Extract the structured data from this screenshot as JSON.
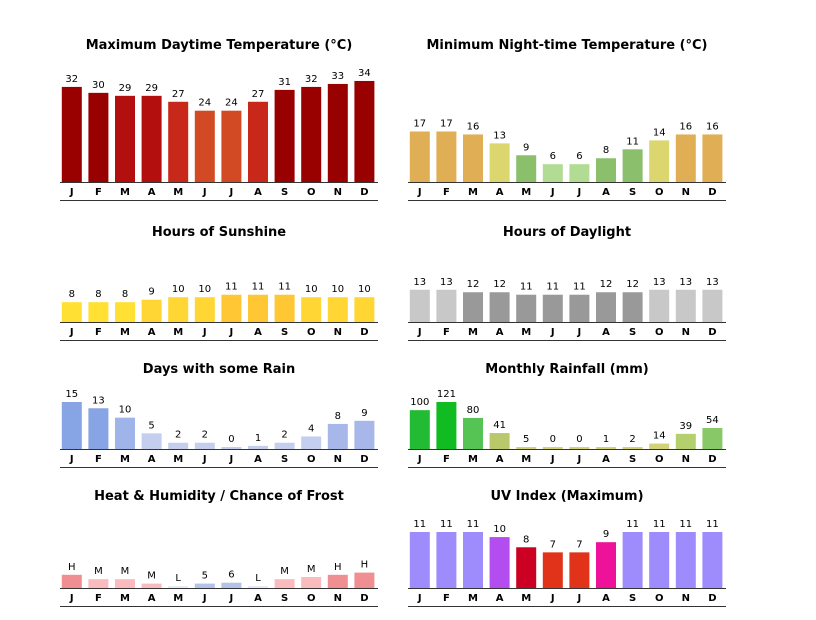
{
  "months": [
    "J",
    "F",
    "M",
    "A",
    "M",
    "J",
    "J",
    "A",
    "S",
    "O",
    "N",
    "D"
  ],
  "chart_data": [
    {
      "type": "bar",
      "title": "Maximum Daytime Temperature (°C)",
      "categories": [
        "J",
        "F",
        "M",
        "A",
        "M",
        "J",
        "J",
        "A",
        "S",
        "O",
        "N",
        "D"
      ],
      "values": [
        32,
        30,
        29,
        29,
        27,
        24,
        24,
        27,
        31,
        32,
        33,
        34
      ],
      "labels": [
        "32",
        "30",
        "29",
        "29",
        "27",
        "24",
        "24",
        "27",
        "31",
        "32",
        "33",
        "34"
      ],
      "colors": [
        "#990000",
        "#990000",
        "#b30f0f",
        "#b30f0f",
        "#c7281a",
        "#d24a24",
        "#d24a24",
        "#c7281a",
        "#990000",
        "#990000",
        "#990000",
        "#990000"
      ],
      "ylim": [
        0,
        35
      ]
    },
    {
      "type": "bar",
      "title": "Minimum Night-time Temperature (°C)",
      "categories": [
        "J",
        "F",
        "M",
        "A",
        "M",
        "J",
        "J",
        "A",
        "S",
        "O",
        "N",
        "D"
      ],
      "values": [
        17,
        17,
        16,
        13,
        9,
        6,
        6,
        8,
        11,
        14,
        16,
        16
      ],
      "labels": [
        "17",
        "17",
        "16",
        "13",
        "9",
        "6",
        "6",
        "8",
        "11",
        "14",
        "16",
        "16"
      ],
      "colors": [
        "#dfae55",
        "#dfae55",
        "#dfae55",
        "#dbd66e",
        "#8bbf6c",
        "#b2dc94",
        "#b2dc94",
        "#8bbf6c",
        "#8bbf6c",
        "#dbd66e",
        "#dfae55",
        "#dfae55"
      ],
      "ylim": [
        0,
        35
      ]
    },
    {
      "type": "bar",
      "title": "Hours of Sunshine",
      "categories": [
        "J",
        "F",
        "M",
        "A",
        "M",
        "J",
        "J",
        "A",
        "S",
        "O",
        "N",
        "D"
      ],
      "values": [
        8,
        8,
        8,
        9,
        10,
        10,
        11,
        11,
        11,
        10,
        10,
        10
      ],
      "labels": [
        "8",
        "8",
        "8",
        "9",
        "10",
        "10",
        "11",
        "11",
        "11",
        "10",
        "10",
        "10"
      ],
      "colors": [
        "#ffe033",
        "#ffe033",
        "#ffe033",
        "#ffd633",
        "#ffd633",
        "#ffd633",
        "#ffc733",
        "#ffc733",
        "#ffc733",
        "#ffd633",
        "#ffd633",
        "#ffd633"
      ],
      "ylim": [
        0,
        25
      ]
    },
    {
      "type": "bar",
      "title": "Hours of Daylight",
      "categories": [
        "J",
        "F",
        "M",
        "A",
        "M",
        "J",
        "J",
        "A",
        "S",
        "O",
        "N",
        "D"
      ],
      "values": [
        13,
        13,
        12,
        12,
        11,
        11,
        11,
        12,
        12,
        13,
        13,
        13
      ],
      "labels": [
        "13",
        "13",
        "12",
        "12",
        "11",
        "11",
        "11",
        "12",
        "12",
        "13",
        "13",
        "13"
      ],
      "colors": [
        "#c8c8c8",
        "#c8c8c8",
        "#999999",
        "#999999",
        "#999999",
        "#999999",
        "#999999",
        "#999999",
        "#999999",
        "#c8c8c8",
        "#c8c8c8",
        "#c8c8c8"
      ],
      "ylim": [
        0,
        25
      ]
    },
    {
      "type": "bar",
      "title": "Days with some Rain",
      "categories": [
        "J",
        "F",
        "M",
        "A",
        "M",
        "J",
        "J",
        "A",
        "S",
        "O",
        "N",
        "D"
      ],
      "values": [
        15,
        13,
        10,
        5,
        2,
        2,
        0,
        1,
        2,
        4,
        8,
        9
      ],
      "labels": [
        "15",
        "13",
        "10",
        "5",
        "2",
        "2",
        "0",
        "1",
        "2",
        "4",
        "8",
        "9"
      ],
      "colors": [
        "#87a4e4",
        "#87a4e4",
        "#9fb4e8",
        "#c4cfef",
        "#c4cfef",
        "#c4cfef",
        "#c4cfef",
        "#c4cfef",
        "#c4cfef",
        "#c4cfef",
        "#a7b7e9",
        "#a7b7e9"
      ],
      "ylim": [
        0,
        15
      ]
    },
    {
      "type": "bar",
      "title": "Monthly Rainfall (mm)",
      "categories": [
        "J",
        "F",
        "M",
        "A",
        "M",
        "J",
        "J",
        "A",
        "S",
        "O",
        "N",
        "D"
      ],
      "values": [
        100,
        121,
        80,
        41,
        5,
        0,
        0,
        1,
        2,
        14,
        39,
        54
      ],
      "labels": [
        "100",
        "121",
        "80",
        "41",
        "5",
        "0",
        "0",
        "1",
        "2",
        "14",
        "39",
        "54"
      ],
      "colors": [
        "#22bb33",
        "#11bb22",
        "#55c455",
        "#b8c86a",
        "#d3d277",
        "#d3d277",
        "#d3d277",
        "#d3d277",
        "#d3d277",
        "#d3d277",
        "#b3cf6e",
        "#88c866"
      ],
      "ylim": [
        0,
        121
      ]
    },
    {
      "type": "bar",
      "title": "Heat & Humidity / Chance of Frost",
      "categories": [
        "J",
        "F",
        "M",
        "A",
        "M",
        "J",
        "J",
        "A",
        "S",
        "O",
        "N",
        "D"
      ],
      "values": [
        3,
        2,
        2,
        1,
        0,
        1,
        1.2,
        0,
        2,
        2.5,
        3,
        3.5
      ],
      "labels": [
        "H",
        "M",
        "M",
        "M",
        "L",
        "5",
        "6",
        "L",
        "M",
        "M",
        "H",
        "H"
      ],
      "colors": [
        "#f08f92",
        "#f9bbbe",
        "#f9bbbe",
        "#f9bbbe",
        "#e8eaf5",
        "#b3c2e8",
        "#b3c2e8",
        "#e8eaf5",
        "#f9bbbe",
        "#f9bbbe",
        "#f08f92",
        "#f08f92"
      ],
      "ylim": [
        0,
        10
      ]
    },
    {
      "type": "bar",
      "title": "UV Index (Maximum)",
      "categories": [
        "J",
        "F",
        "M",
        "A",
        "M",
        "J",
        "J",
        "A",
        "S",
        "O",
        "N",
        "D"
      ],
      "values": [
        11,
        11,
        11,
        10,
        8,
        7,
        7,
        9,
        11,
        11,
        11,
        11
      ],
      "labels": [
        "11",
        "11",
        "11",
        "10",
        "8",
        "7",
        "7",
        "9",
        "11",
        "11",
        "11",
        "11"
      ],
      "colors": [
        "#9e8cfd",
        "#9e8cfd",
        "#9e8cfd",
        "#b34df0",
        "#cc0022",
        "#e0331a",
        "#e0331a",
        "#ee1199",
        "#9e8cfd",
        "#9e8cfd",
        "#9e8cfd",
        "#9e8cfd"
      ],
      "ylim": [
        0,
        11
      ]
    }
  ]
}
